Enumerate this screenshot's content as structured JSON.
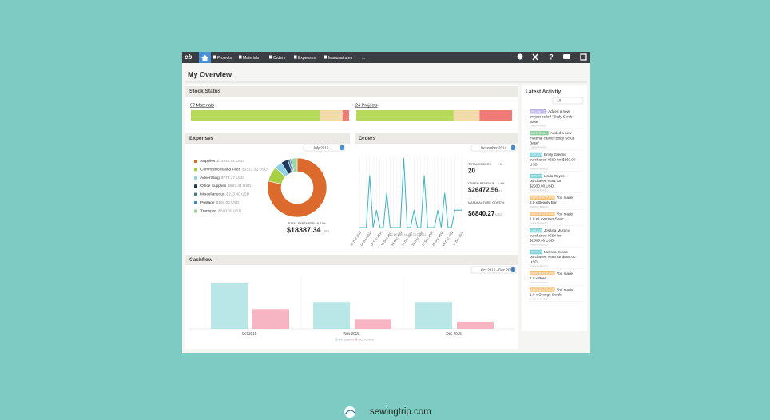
{
  "nav": {
    "logo": "cb",
    "items": [
      "Projects",
      "Materials",
      "Orders",
      "Expenses",
      "Manufactures",
      "..."
    ]
  },
  "header": {
    "title": "My Overview"
  },
  "stock_status": {
    "title": "Stock Status",
    "colors": [
      "#b7d95b",
      "#f1dcaa",
      "#f07a74"
    ],
    "groups": [
      {
        "label": "97 Materials",
        "values": [
          79,
          14,
          4
        ]
      },
      {
        "label": "24 Projects",
        "values": [
          15,
          4,
          5
        ]
      }
    ]
  },
  "expenses": {
    "type": "pie",
    "title": "Expenses",
    "period": "July 2015",
    "categories": [
      "Supplies",
      "Commissions and Fees",
      "Advertising",
      "Office Supplies",
      "Miscellaneous",
      "Postage",
      "Transport"
    ],
    "values": [
      14443.91,
      1513.32,
      773.27,
      693.44,
      213.4,
      150,
      600
    ],
    "value_labels": [
      "$14443.91 USD",
      "$1513.32 USD",
      "$773.27 USD",
      "$693.44 USD",
      "$213.40 USD",
      "$150.00 USD",
      "$600.00 USD"
    ],
    "colors": [
      "#db6a2c",
      "#a9cf46",
      "#8fd0e8",
      "#1f3a5f",
      "#4a7d8c",
      "#3b8fd1",
      "#9fd59f"
    ],
    "total_label": "TOTAL EXPENSES",
    "total_change": "↑16.21%",
    "total": "$18387.34",
    "currency": "USD"
  },
  "orders": {
    "type": "line",
    "title": "Orders",
    "period": "December 2014",
    "categories": [
      "01 Dec 2014",
      null,
      null,
      "04 Dec 2014",
      null,
      null,
      "07 Dec 2014",
      null,
      null,
      "10 Dec 2014",
      null,
      null,
      "13 Dec 2014",
      null,
      null,
      "16 Dec 2014",
      null,
      null,
      "19 Dec 2014",
      null,
      null,
      "22 Dec 2014",
      null,
      null,
      "25 Dec 2014",
      null,
      null,
      "28 Dec 2014",
      null,
      null,
      "31 Dec 2014"
    ],
    "values": [
      0,
      0,
      0,
      3,
      0,
      1,
      0,
      0,
      2,
      0,
      0,
      0,
      0,
      4,
      0,
      0,
      1,
      0,
      0,
      3,
      0,
      0,
      0,
      1,
      0,
      2,
      0,
      0,
      1,
      1,
      1
    ],
    "ylim": [
      0,
      4
    ],
    "color": "#3bb3c3",
    "range_label": "01 DEC 2014 - 31 DEC 2014",
    "stats": [
      {
        "label": "TOTAL ORDERS",
        "change": "↑9",
        "value": "20"
      },
      {
        "label": "ORDER REVENUE",
        "change": "↑4%",
        "value": "$26472.56",
        "unit": "USD"
      },
      {
        "label": "MANUFACTURE COST",
        "change": "↑7%",
        "value": "$6840.27",
        "unit": "USD"
      }
    ]
  },
  "cashflow": {
    "type": "bar",
    "title": "Cashflow",
    "period": "Oct 2015 - Dec 2015",
    "categories": [
      "Oct 2015",
      "Nov 2015",
      "Dec 2015"
    ],
    "ylim": [
      0,
      100
    ],
    "series": [
      {
        "name": "INCOMING",
        "color": "#b9e7e7",
        "values": [
          88,
          52,
          52
        ]
      },
      {
        "name": "OUTGOING",
        "color": "#f7b4c3",
        "values": [
          38,
          18,
          14
        ]
      }
    ]
  },
  "activity": {
    "title": "Latest Activity",
    "filter": "All",
    "items": [
      {
        "tag": "PROJECT",
        "lines": [
          "Added a new",
          "project called \"Body Scrub",
          "Base\""
        ],
        "time": "1 MONTH AGO"
      },
      {
        "tag": "MATERIAL",
        "lines": [
          "Added a new",
          "material called \"Body Scrub",
          "Base\""
        ],
        "time": "1 MONTH AGO"
      },
      {
        "tag": "ORDER",
        "lines": [
          "Emily Greene",
          "purchased #690 for $160.00",
          "USD"
        ],
        "time": "3 MONTHS AGO"
      },
      {
        "tag": "ORDER",
        "lines": [
          "Linda Reyes",
          "purchased #691 for",
          "$2930.00 USD"
        ],
        "time": "3 MONTHS AGO"
      },
      {
        "tag": "MANUFACTURE",
        "lines": [
          "You made",
          "2.0 x Beauty Bar"
        ],
        "time": "3 MONTHS AGO"
      },
      {
        "tag": "MANUFACTURE",
        "lines": [
          "You made",
          "1.0 x Lavender Soap"
        ],
        "time": "3 MONTHS AGO"
      },
      {
        "tag": "ORDER",
        "lines": [
          "Jessica Murphy",
          "purchased #694 for",
          "$1585.60 USD"
        ],
        "time": "3 MONTHS AGO"
      },
      {
        "tag": "ORDER",
        "lines": [
          "Melissa Evans",
          "purchased #693 for $566.00",
          "USD"
        ],
        "time": "3 MONTHS AGO"
      },
      {
        "tag": "MANUFACTURE",
        "lines": [
          "You made",
          "1.0 x Pure"
        ],
        "time": "3 MONTHS AGO"
      },
      {
        "tag": "MANUFACTURE",
        "lines": [
          "You made",
          "1.0 x Orange Scrub"
        ],
        "time": "3 MONTHS AGO"
      }
    ]
  },
  "footer": {
    "site": "sewingtrip.com"
  }
}
